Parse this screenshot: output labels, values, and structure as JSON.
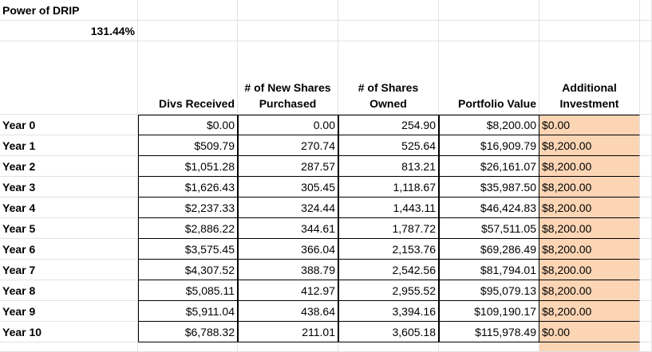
{
  "title": "Power of DRIP",
  "rate": "131.44%",
  "headers": {
    "divs_received": "Divs Received",
    "new_shares": "# of New Shares Purchased",
    "shares_owned": "# of Shares Owned",
    "portfolio_value": "Portfolio Value",
    "additional_investment": "Additional Investment"
  },
  "rows": [
    {
      "year": "Year 0",
      "divs": "$0.00",
      "new_shares": "0.00",
      "shares_owned": "254.90",
      "portfolio_value": "$8,200.00",
      "additional": "$0.00"
    },
    {
      "year": "Year 1",
      "divs": "$509.79",
      "new_shares": "270.74",
      "shares_owned": "525.64",
      "portfolio_value": "$16,909.79",
      "additional": "$8,200.00"
    },
    {
      "year": "Year 2",
      "divs": "$1,051.28",
      "new_shares": "287.57",
      "shares_owned": "813.21",
      "portfolio_value": "$26,161.07",
      "additional": "$8,200.00"
    },
    {
      "year": "Year 3",
      "divs": "$1,626.43",
      "new_shares": "305.45",
      "shares_owned": "1,118.67",
      "portfolio_value": "$35,987.50",
      "additional": "$8,200.00"
    },
    {
      "year": "Year 4",
      "divs": "$2,237.33",
      "new_shares": "324.44",
      "shares_owned": "1,443.11",
      "portfolio_value": "$46,424.83",
      "additional": "$8,200.00"
    },
    {
      "year": "Year 5",
      "divs": "$2,886.22",
      "new_shares": "344.61",
      "shares_owned": "1,787.72",
      "portfolio_value": "$57,511.05",
      "additional": "$8,200.00"
    },
    {
      "year": "Year 6",
      "divs": "$3,575.45",
      "new_shares": "366.04",
      "shares_owned": "2,153.76",
      "portfolio_value": "$69,286.49",
      "additional": "$8,200.00"
    },
    {
      "year": "Year 7",
      "divs": "$4,307.52",
      "new_shares": "388.79",
      "shares_owned": "2,542.56",
      "portfolio_value": "$81,794.01",
      "additional": "$8,200.00"
    },
    {
      "year": "Year 8",
      "divs": "$5,085.11",
      "new_shares": "412.97",
      "shares_owned": "2,955.52",
      "portfolio_value": "$95,079.13",
      "additional": "$8,200.00"
    },
    {
      "year": "Year 9",
      "divs": "$5,911.04",
      "new_shares": "438.64",
      "shares_owned": "3,394.16",
      "portfolio_value": "$109,190.17",
      "additional": "$8,200.00"
    },
    {
      "year": "Year 10",
      "divs": "$6,788.32",
      "new_shares": "211.01",
      "shares_owned": "3,605.18",
      "portfolio_value": "$115,978.49",
      "additional": "$0.00"
    }
  ],
  "colors": {
    "highlight": "#fcd5b5",
    "gridline": "#e2e2e2",
    "border": "#000000"
  }
}
